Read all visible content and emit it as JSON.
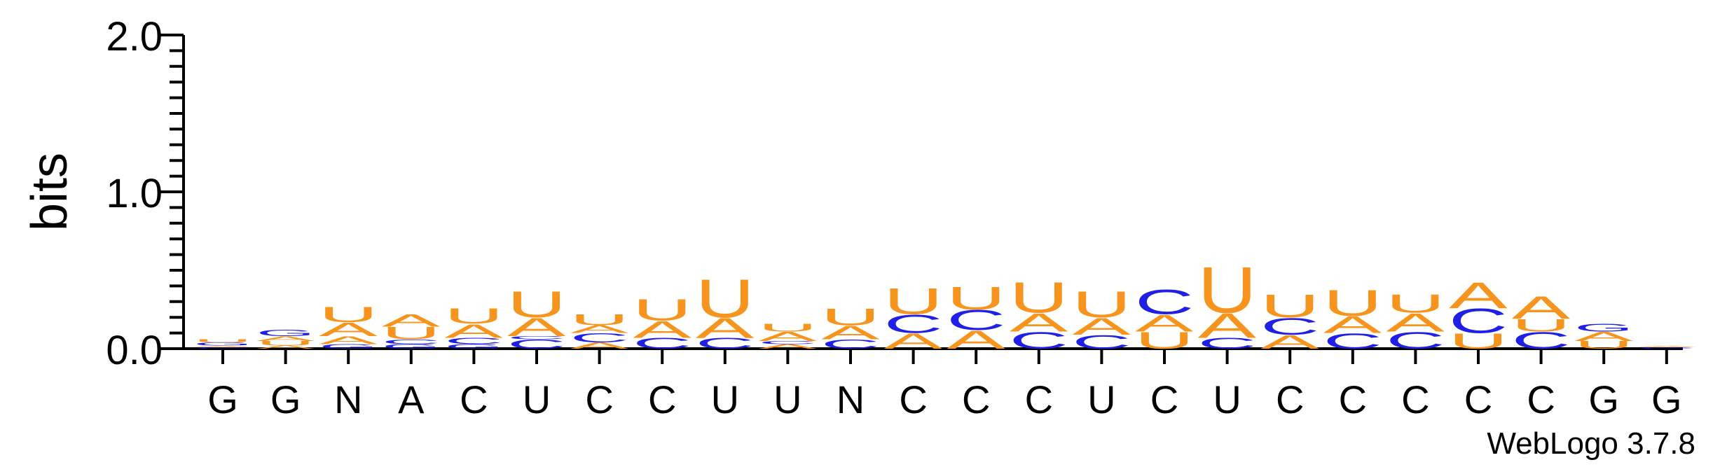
{
  "chart_data": {
    "type": "sequence-logo",
    "ylabel": "bits",
    "ylim": [
      0,
      2.0
    ],
    "yticks": [
      "0.0",
      "1.0",
      "2.0"
    ],
    "credit": "WebLogo 3.7.8",
    "colors": {
      "A": "#f7941d",
      "U": "#f7941d",
      "C": "#1f1fe6",
      "G": "#1f1fe6"
    },
    "positions": [
      {
        "label": "G",
        "stack": [
          [
            "C",
            0.01
          ],
          [
            "A",
            0.01
          ],
          [
            "G",
            0.02
          ],
          [
            "U",
            0.02
          ]
        ]
      },
      {
        "label": "G",
        "stack": [
          [
            "A",
            0.02
          ],
          [
            "U",
            0.03
          ],
          [
            "A",
            0.03
          ],
          [
            "G",
            0.04
          ]
        ]
      },
      {
        "label": "N",
        "stack": [
          [
            "G",
            0.03
          ],
          [
            "A",
            0.05
          ],
          [
            "A",
            0.09
          ],
          [
            "U",
            0.1
          ]
        ]
      },
      {
        "label": "A",
        "stack": [
          [
            "G",
            0.03
          ],
          [
            "C",
            0.03
          ],
          [
            "U",
            0.08
          ],
          [
            "A",
            0.08
          ]
        ]
      },
      {
        "label": "C",
        "stack": [
          [
            "G",
            0.03
          ],
          [
            "C",
            0.04
          ],
          [
            "A",
            0.09
          ],
          [
            "U",
            0.1
          ]
        ]
      },
      {
        "label": "U",
        "stack": [
          [
            "C",
            0.06
          ],
          [
            "C",
            0.02
          ],
          [
            "A",
            0.12
          ],
          [
            "U",
            0.17
          ]
        ]
      },
      {
        "label": "C",
        "stack": [
          [
            "A",
            0.04
          ],
          [
            "C",
            0.06
          ],
          [
            "A",
            0.05
          ],
          [
            "U",
            0.07
          ]
        ]
      },
      {
        "label": "C",
        "stack": [
          [
            "C",
            0.07
          ],
          [
            "A",
            0.11
          ],
          [
            "U",
            0.14
          ]
        ]
      },
      {
        "label": "U",
        "stack": [
          [
            "C",
            0.07
          ],
          [
            "A",
            0.13
          ],
          [
            "U",
            0.25
          ]
        ]
      },
      {
        "label": "U",
        "stack": [
          [
            "A",
            0.03
          ],
          [
            "C",
            0.02
          ],
          [
            "A",
            0.06
          ],
          [
            "U",
            0.05
          ]
        ]
      },
      {
        "label": "N",
        "stack": [
          [
            "C",
            0.06
          ],
          [
            "A",
            0.09
          ],
          [
            "U",
            0.11
          ]
        ]
      },
      {
        "label": "C",
        "stack": [
          [
            "A",
            0.1
          ],
          [
            "C",
            0.12
          ],
          [
            "U",
            0.17
          ]
        ]
      },
      {
        "label": "C",
        "stack": [
          [
            "A",
            0.12
          ],
          [
            "C",
            0.13
          ],
          [
            "U",
            0.15
          ]
        ]
      },
      {
        "label": "C",
        "stack": [
          [
            "C",
            0.11
          ],
          [
            "A",
            0.12
          ],
          [
            "U",
            0.2
          ]
        ]
      },
      {
        "label": "U",
        "stack": [
          [
            "C",
            0.09
          ],
          [
            "A",
            0.11
          ],
          [
            "U",
            0.17
          ]
        ]
      },
      {
        "label": "C",
        "stack": [
          [
            "U",
            0.11
          ],
          [
            "A",
            0.11
          ],
          [
            "C",
            0.16
          ]
        ]
      },
      {
        "label": "U",
        "stack": [
          [
            "C",
            0.07
          ],
          [
            "A",
            0.16
          ],
          [
            "U",
            0.3
          ]
        ]
      },
      {
        "label": "C",
        "stack": [
          [
            "A",
            0.09
          ],
          [
            "C",
            0.11
          ],
          [
            "U",
            0.15
          ]
        ]
      },
      {
        "label": "C",
        "stack": [
          [
            "C",
            0.1
          ],
          [
            "A",
            0.11
          ],
          [
            "U",
            0.17
          ]
        ]
      },
      {
        "label": "C",
        "stack": [
          [
            "C",
            0.11
          ],
          [
            "A",
            0.12
          ],
          [
            "U",
            0.12
          ]
        ]
      },
      {
        "label": "C",
        "stack": [
          [
            "U",
            0.1
          ],
          [
            "C",
            0.16
          ],
          [
            "A",
            0.17
          ]
        ]
      },
      {
        "label": "C",
        "stack": [
          [
            "C",
            0.11
          ],
          [
            "U",
            0.08
          ],
          [
            "A",
            0.15
          ]
        ]
      },
      {
        "label": "G",
        "stack": [
          [
            "U",
            0.05
          ],
          [
            "A",
            0.06
          ],
          [
            "G",
            0.05
          ]
        ]
      },
      {
        "label": "G",
        "stack": [
          [
            "C",
            0.01
          ],
          [
            "A",
            0.01
          ]
        ]
      }
    ]
  }
}
